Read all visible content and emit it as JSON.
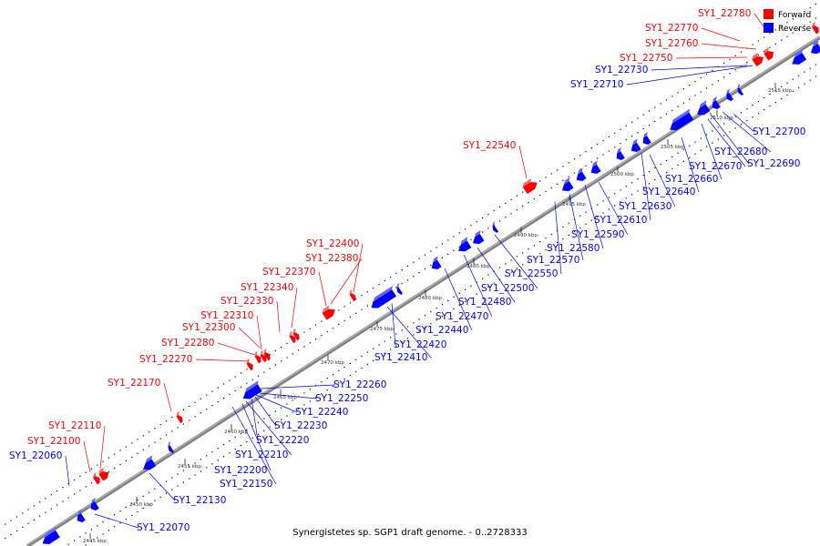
{
  "caption": "Synergistetes sp. SGP1 draft genome. - 0..2728333",
  "legend": [
    {
      "label": "Forward",
      "color": "#ff0000"
    },
    {
      "label": "Reverse",
      "color": "#0000ff"
    }
  ],
  "colors": {
    "forward": "#ff0000",
    "reverse": "#0000ff",
    "backbone": "#808080"
  },
  "ticks": [
    "2445 kbp",
    "2450 kbp",
    "2455 kbp",
    "2460 kbp",
    "2465 kbp",
    "2470 kbp",
    "2475 kbp",
    "2480 kbp",
    "2485 kbp",
    "2490 kbp",
    "2495 kbp",
    "2500 kbp",
    "2505 kbp",
    "2510 kbp",
    "2515 kbp"
  ],
  "genes_forward": [
    "SY1_22780",
    "SY1_22770",
    "SY1_22760",
    "SY1_22750",
    "SY1_22540",
    "SY1_22400",
    "SY1_22380",
    "SY1_22370",
    "SY1_22340",
    "SY1_22330",
    "SY1_22310",
    "SY1_22300",
    "SY1_22280",
    "SY1_22270",
    "SY1_22170",
    "SY1_22110",
    "SY1_22100"
  ],
  "genes_reverse": [
    "SY1_22730",
    "SY1_22710",
    "SY1_22700",
    "SY1_22680",
    "SY1_22690",
    "SY1_22670",
    "SY1_22660",
    "SY1_22640",
    "SY1_22630",
    "SY1_22610",
    "SY1_22590",
    "SY1_22580",
    "SY1_22570",
    "SY1_22550",
    "SY1_22500",
    "SY1_22480",
    "SY1_22470",
    "SY1_22440",
    "SY1_22420",
    "SY1_22410",
    "SY1_22260",
    "SY1_22250",
    "SY1_22240",
    "SY1_22230",
    "SY1_22220",
    "SY1_22210",
    "SY1_22200",
    "SY1_22150",
    "SY1_22130",
    "SY1_22070",
    "SY1_22060"
  ]
}
